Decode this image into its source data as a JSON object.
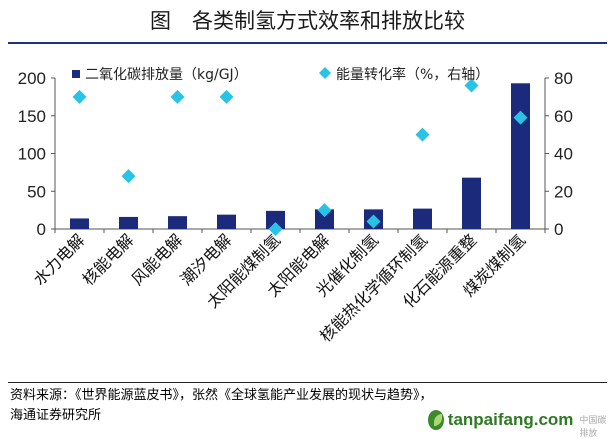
{
  "page": {
    "title": "图　各类制氢方式效率和排放比较",
    "source_line1": "资料来源：《世界能源蓝皮书》，张然《全球氢能产业发展的现状与趋势》，",
    "source_line2": "海通证券研究所",
    "watermark_text": "tanpaifang.com",
    "watermark_stamp": "中国碳排放"
  },
  "colors": {
    "bar": "#1b2a7a",
    "marker": "#29c3e6",
    "title_rule": "#1f2f82",
    "text": "#1a1a1a"
  },
  "chart_data": {
    "type": "bar",
    "categories": [
      "水力电解",
      "核能电解",
      "风能电解",
      "潮汐电解",
      "太阳能煤制氢",
      "太阳能电解",
      "光催化制氢",
      "核能热化学循环制氢",
      "化石能源重整",
      "煤炭煤制氢"
    ],
    "series": [
      {
        "name": "二氧化碳排放量（kg/GJ）",
        "type": "bar",
        "axis": "left",
        "values": [
          14,
          16,
          17,
          19,
          24,
          26,
          26,
          27,
          68,
          193
        ]
      },
      {
        "name": "能量转化率（%，右轴）",
        "type": "scatter",
        "axis": "right",
        "marker": "diamond",
        "values": [
          70,
          28,
          70,
          70,
          0,
          10,
          4,
          50,
          76,
          59
        ]
      }
    ],
    "ylim_left": [
      0,
      200
    ],
    "yticks_left": [
      0,
      50,
      100,
      150,
      200
    ],
    "ylim_right": [
      0,
      80
    ],
    "yticks_right": [
      0,
      20,
      40,
      60,
      80
    ],
    "legend_position": "top",
    "grid": false
  }
}
